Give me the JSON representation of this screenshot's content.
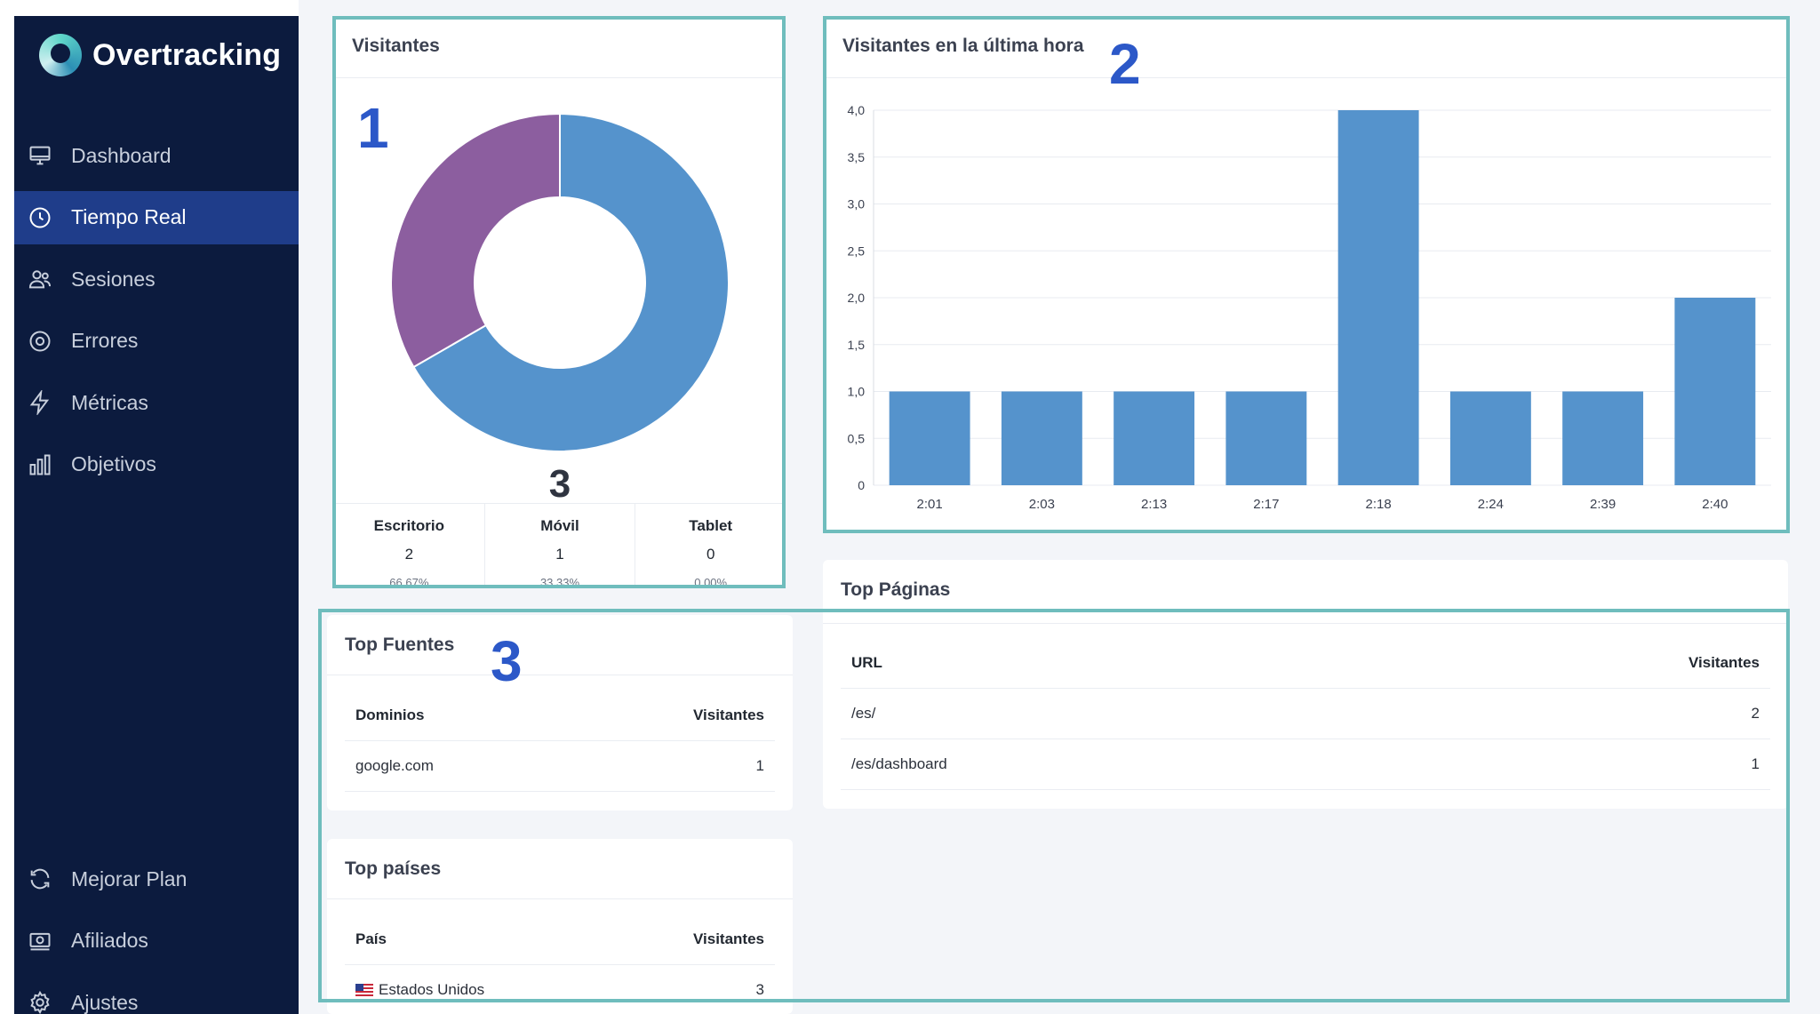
{
  "app": {
    "name": "Overtracking"
  },
  "sidebar": {
    "items": [
      {
        "label": "Dashboard",
        "icon": "monitor-icon",
        "active": false
      },
      {
        "label": "Tiempo Real",
        "icon": "clock-icon",
        "active": true
      },
      {
        "label": "Sesiones",
        "icon": "users-icon",
        "active": false
      },
      {
        "label": "Errores",
        "icon": "error-icon",
        "active": false
      },
      {
        "label": "Métricas",
        "icon": "lightning-icon",
        "active": false
      },
      {
        "label": "Objetivos",
        "icon": "bar-chart-icon",
        "active": false
      }
    ],
    "bottom_items": [
      {
        "label": "Mejorar Plan",
        "icon": "refresh-icon"
      },
      {
        "label": "Afiliados",
        "icon": "money-icon"
      },
      {
        "label": "Ajustes",
        "icon": "gear-icon"
      }
    ]
  },
  "visitors_card": {
    "title": "Visitantes",
    "total": "3",
    "stats": [
      {
        "label": "Escritorio",
        "value": "2",
        "pct": "66.67%"
      },
      {
        "label": "Móvil",
        "value": "1",
        "pct": "33.33%"
      },
      {
        "label": "Tablet",
        "value": "0",
        "pct": "0.00%"
      }
    ]
  },
  "hour_card": {
    "title": "Visitantes en la última hora"
  },
  "top_sources": {
    "title": "Top Fuentes",
    "col_left": "Dominios",
    "col_right": "Visitantes",
    "rows": [
      {
        "name": "google.com",
        "value": "1"
      }
    ]
  },
  "top_countries": {
    "title": "Top países",
    "col_left": "País",
    "col_right": "Visitantes",
    "rows": [
      {
        "name": "Estados Unidos",
        "value": "3"
      }
    ]
  },
  "top_pages": {
    "title": "Top Páginas",
    "col_left": "URL",
    "col_right": "Visitantes",
    "rows": [
      {
        "name": "/es/",
        "value": "2"
      },
      {
        "name": "/es/dashboard",
        "value": "1"
      }
    ]
  },
  "annotations": [
    "1",
    "2",
    "3"
  ],
  "colors": {
    "desktop": "#5593cc",
    "mobile": "#8c5e9f",
    "bar": "#5593cc",
    "sidebar": "#0c1b3e",
    "active": "#1f3d8a",
    "highlight": "#6fbdbd",
    "annotation": "#2c58c8"
  },
  "chart_data": [
    {
      "type": "pie",
      "variant": "donut",
      "categories": [
        "Escritorio",
        "Móvil",
        "Tablet"
      ],
      "values": [
        2,
        1,
        0
      ]
    },
    {
      "type": "bar",
      "title": "Visitantes en la última hora",
      "categories": [
        "2:01",
        "2:03",
        "2:13",
        "2:17",
        "2:18",
        "2:24",
        "2:39",
        "2:40"
      ],
      "values": [
        1,
        1,
        1,
        1,
        4,
        1,
        1,
        2
      ],
      "ylim": [
        0,
        4
      ],
      "yticks": [
        "0",
        "0,5",
        "1,0",
        "1,5",
        "2,0",
        "2,5",
        "3,0",
        "3,5",
        "4,0"
      ],
      "grid": true
    }
  ]
}
